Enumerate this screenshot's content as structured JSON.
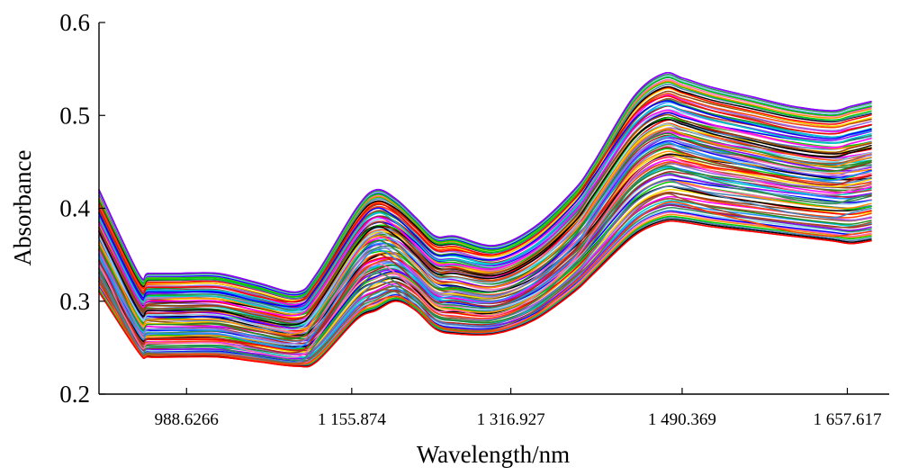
{
  "chart_data": {
    "type": "line",
    "xlabel": "Wavelength/nm",
    "ylabel": "Absorbance",
    "ylim": [
      0.2,
      0.6
    ],
    "yticks": [
      0.2,
      0.3,
      0.4,
      0.5,
      0.6
    ],
    "ytick_labels": [
      "0.2",
      "0.3",
      "0.4",
      "0.5",
      "0.6"
    ],
    "xlim": [
      900,
      1700
    ],
    "xticks": [
      988.6266,
      1155.874,
      1316.927,
      1490.369,
      1657.617
    ],
    "xtick_labels": [
      "988.6266",
      "1 155.874",
      "1 316.927",
      "1 490.369",
      "1 657.617"
    ],
    "grid": false,
    "legend": "none",
    "x": [
      900,
      940,
      950,
      980,
      1020,
      1060,
      1100,
      1120,
      1160,
      1180,
      1200,
      1220,
      1240,
      1260,
      1300,
      1340,
      1380,
      1400,
      1440,
      1470,
      1490,
      1520,
      1560,
      1600,
      1640,
      1660,
      1680
    ],
    "palette": [
      "#ff0000",
      "#00cc00",
      "#0000ff",
      "#8b00ff",
      "#00cccc",
      "#ff00ff",
      "#8b4513",
      "#000000",
      "#ff8c00",
      "#87ceeb",
      "#b22222",
      "#228b22",
      "#9370db",
      "#ffd700",
      "#4682b4",
      "#ff69b4",
      "#2e8b57",
      "#1e90ff",
      "#a0522d",
      "#ff4500"
    ],
    "envelope": {
      "upper": [
        0.42,
        0.33,
        0.33,
        0.33,
        0.33,
        0.32,
        0.31,
        0.33,
        0.4,
        0.42,
        0.41,
        0.39,
        0.37,
        0.37,
        0.36,
        0.38,
        0.42,
        0.45,
        0.52,
        0.545,
        0.54,
        0.53,
        0.52,
        0.51,
        0.505,
        0.51,
        0.515
      ],
      "lower": [
        0.31,
        0.245,
        0.24,
        0.24,
        0.24,
        0.235,
        0.23,
        0.235,
        0.28,
        0.29,
        0.3,
        0.29,
        0.27,
        0.265,
        0.265,
        0.28,
        0.31,
        0.33,
        0.37,
        0.385,
        0.385,
        0.38,
        0.375,
        0.37,
        0.365,
        0.362,
        0.365
      ]
    },
    "series": [
      {
        "color": "#8b00ff",
        "values": [
          0.42,
          0.33,
          0.33,
          0.33,
          0.33,
          0.32,
          0.31,
          0.33,
          0.4,
          0.42,
          0.41,
          0.39,
          0.37,
          0.37,
          0.36,
          0.38,
          0.42,
          0.45,
          0.52,
          0.545,
          0.54,
          0.53,
          0.52,
          0.51,
          0.505,
          0.51,
          0.515
        ]
      },
      {
        "color": "#00cc00",
        "values": [
          0.41,
          0.325,
          0.325,
          0.325,
          0.325,
          0.315,
          0.305,
          0.325,
          0.395,
          0.415,
          0.405,
          0.385,
          0.365,
          0.365,
          0.355,
          0.375,
          0.415,
          0.445,
          0.515,
          0.54,
          0.535,
          0.525,
          0.515,
          0.505,
          0.5,
          0.505,
          0.51
        ]
      },
      {
        "color": "#ff0000",
        "values": [
          0.4,
          0.315,
          0.315,
          0.315,
          0.315,
          0.305,
          0.3,
          0.32,
          0.385,
          0.405,
          0.395,
          0.375,
          0.355,
          0.355,
          0.35,
          0.37,
          0.41,
          0.44,
          0.5,
          0.52,
          0.515,
          0.505,
          0.495,
          0.485,
          0.48,
          0.485,
          0.49
        ]
      },
      {
        "color": "#0000ff",
        "values": [
          0.395,
          0.31,
          0.31,
          0.31,
          0.31,
          0.3,
          0.295,
          0.315,
          0.38,
          0.4,
          0.39,
          0.37,
          0.35,
          0.35,
          0.345,
          0.365,
          0.405,
          0.435,
          0.495,
          0.515,
          0.51,
          0.5,
          0.49,
          0.48,
          0.475,
          0.48,
          0.485
        ]
      },
      {
        "color": "#00cccc",
        "values": [
          0.39,
          0.305,
          0.305,
          0.305,
          0.305,
          0.295,
          0.29,
          0.31,
          0.375,
          0.395,
          0.385,
          0.365,
          0.345,
          0.345,
          0.34,
          0.36,
          0.4,
          0.43,
          0.49,
          0.51,
          0.505,
          0.495,
          0.485,
          0.475,
          0.47,
          0.475,
          0.48
        ]
      },
      {
        "color": "#ff00ff",
        "values": [
          0.385,
          0.3,
          0.3,
          0.3,
          0.3,
          0.29,
          0.285,
          0.305,
          0.37,
          0.39,
          0.38,
          0.36,
          0.34,
          0.34,
          0.335,
          0.355,
          0.395,
          0.425,
          0.485,
          0.505,
          0.5,
          0.49,
          0.48,
          0.47,
          0.465,
          0.47,
          0.475
        ]
      },
      {
        "color": "#8b4513",
        "values": [
          0.38,
          0.295,
          0.295,
          0.295,
          0.295,
          0.285,
          0.28,
          0.3,
          0.365,
          0.385,
          0.375,
          0.355,
          0.335,
          0.335,
          0.33,
          0.35,
          0.39,
          0.42,
          0.48,
          0.5,
          0.495,
          0.485,
          0.475,
          0.465,
          0.46,
          0.465,
          0.47
        ]
      },
      {
        "color": "#000000",
        "values": [
          0.375,
          0.29,
          0.29,
          0.29,
          0.29,
          0.28,
          0.275,
          0.295,
          0.36,
          0.38,
          0.37,
          0.35,
          0.33,
          0.33,
          0.325,
          0.345,
          0.385,
          0.415,
          0.475,
          0.495,
          0.49,
          0.48,
          0.47,
          0.46,
          0.455,
          0.46,
          0.465
        ]
      },
      {
        "color": "#87ceeb",
        "values": [
          0.37,
          0.285,
          0.285,
          0.285,
          0.285,
          0.275,
          0.27,
          0.29,
          0.355,
          0.375,
          0.365,
          0.345,
          0.325,
          0.325,
          0.32,
          0.34,
          0.38,
          0.41,
          0.47,
          0.49,
          0.485,
          0.475,
          0.465,
          0.455,
          0.45,
          0.455,
          0.46
        ]
      },
      {
        "color": "#ff8c00",
        "values": [
          0.365,
          0.28,
          0.28,
          0.28,
          0.28,
          0.27,
          0.265,
          0.285,
          0.35,
          0.37,
          0.36,
          0.34,
          0.32,
          0.32,
          0.315,
          0.335,
          0.375,
          0.405,
          0.465,
          0.485,
          0.48,
          0.47,
          0.46,
          0.45,
          0.445,
          0.45,
          0.455
        ]
      },
      {
        "color": "#228b22",
        "values": [
          0.36,
          0.275,
          0.275,
          0.275,
          0.275,
          0.265,
          0.26,
          0.28,
          0.345,
          0.365,
          0.355,
          0.335,
          0.315,
          0.315,
          0.31,
          0.33,
          0.37,
          0.4,
          0.46,
          0.48,
          0.475,
          0.465,
          0.455,
          0.445,
          0.44,
          0.445,
          0.45
        ]
      },
      {
        "color": "#9370db",
        "values": [
          0.355,
          0.27,
          0.27,
          0.27,
          0.27,
          0.26,
          0.255,
          0.275,
          0.34,
          0.36,
          0.35,
          0.33,
          0.31,
          0.31,
          0.305,
          0.325,
          0.365,
          0.395,
          0.455,
          0.475,
          0.47,
          0.46,
          0.45,
          0.44,
          0.435,
          0.44,
          0.445
        ]
      },
      {
        "color": "#1e90ff",
        "values": [
          0.35,
          0.265,
          0.265,
          0.265,
          0.265,
          0.255,
          0.25,
          0.27,
          0.335,
          0.355,
          0.345,
          0.325,
          0.305,
          0.305,
          0.3,
          0.32,
          0.36,
          0.39,
          0.45,
          0.47,
          0.465,
          0.455,
          0.445,
          0.435,
          0.43,
          0.435,
          0.44
        ]
      },
      {
        "color": "#b22222",
        "values": [
          0.345,
          0.26,
          0.26,
          0.26,
          0.26,
          0.25,
          0.245,
          0.265,
          0.33,
          0.35,
          0.34,
          0.32,
          0.3,
          0.3,
          0.295,
          0.315,
          0.355,
          0.385,
          0.445,
          0.465,
          0.46,
          0.45,
          0.44,
          0.43,
          0.425,
          0.43,
          0.435
        ]
      },
      {
        "color": "#ff69b4",
        "values": [
          0.34,
          0.255,
          0.255,
          0.255,
          0.255,
          0.245,
          0.24,
          0.26,
          0.32,
          0.34,
          0.33,
          0.31,
          0.29,
          0.29,
          0.285,
          0.305,
          0.345,
          0.375,
          0.435,
          0.455,
          0.45,
          0.44,
          0.43,
          0.42,
          0.415,
          0.42,
          0.425
        ]
      },
      {
        "color": "#2e8b57",
        "values": [
          0.335,
          0.25,
          0.25,
          0.25,
          0.25,
          0.24,
          0.235,
          0.255,
          0.31,
          0.33,
          0.32,
          0.3,
          0.285,
          0.28,
          0.28,
          0.3,
          0.34,
          0.365,
          0.425,
          0.445,
          0.44,
          0.43,
          0.42,
          0.41,
          0.405,
          0.41,
          0.415
        ]
      },
      {
        "color": "#4682b4",
        "values": [
          0.33,
          0.25,
          0.245,
          0.245,
          0.245,
          0.24,
          0.235,
          0.25,
          0.3,
          0.32,
          0.315,
          0.295,
          0.28,
          0.275,
          0.275,
          0.295,
          0.33,
          0.355,
          0.41,
          0.43,
          0.425,
          0.415,
          0.405,
          0.395,
          0.39,
          0.395,
          0.4
        ]
      },
      {
        "color": "#a0522d",
        "values": [
          0.325,
          0.248,
          0.244,
          0.243,
          0.243,
          0.238,
          0.233,
          0.245,
          0.29,
          0.31,
          0.31,
          0.29,
          0.275,
          0.27,
          0.27,
          0.29,
          0.325,
          0.345,
          0.395,
          0.415,
          0.41,
          0.4,
          0.39,
          0.385,
          0.38,
          0.38,
          0.385
        ]
      },
      {
        "color": "#ff4500",
        "values": [
          0.32,
          0.246,
          0.242,
          0.242,
          0.242,
          0.236,
          0.232,
          0.24,
          0.285,
          0.3,
          0.305,
          0.295,
          0.275,
          0.268,
          0.268,
          0.285,
          0.32,
          0.34,
          0.385,
          0.405,
          0.405,
          0.395,
          0.385,
          0.375,
          0.37,
          0.372,
          0.375
        ]
      },
      {
        "color": "#ff0000",
        "values": [
          0.31,
          0.245,
          0.24,
          0.24,
          0.24,
          0.235,
          0.23,
          0.235,
          0.28,
          0.29,
          0.3,
          0.29,
          0.27,
          0.265,
          0.265,
          0.28,
          0.31,
          0.33,
          0.37,
          0.385,
          0.385,
          0.38,
          0.375,
          0.37,
          0.365,
          0.362,
          0.365
        ]
      }
    ]
  }
}
